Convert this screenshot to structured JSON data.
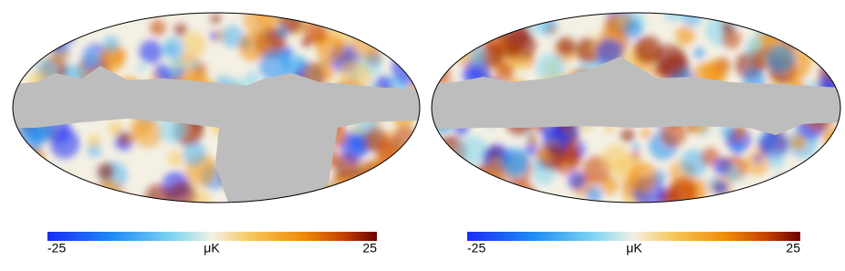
{
  "maps": [
    {
      "colorbar": {
        "label": "μK",
        "lim": [
          -25,
          25
        ],
        "ticks": [
          -25,
          25
        ]
      }
    },
    {
      "colorbar": {
        "label": "μK",
        "lim": [
          -25,
          25
        ],
        "ticks": [
          -25,
          25
        ]
      }
    }
  ]
}
